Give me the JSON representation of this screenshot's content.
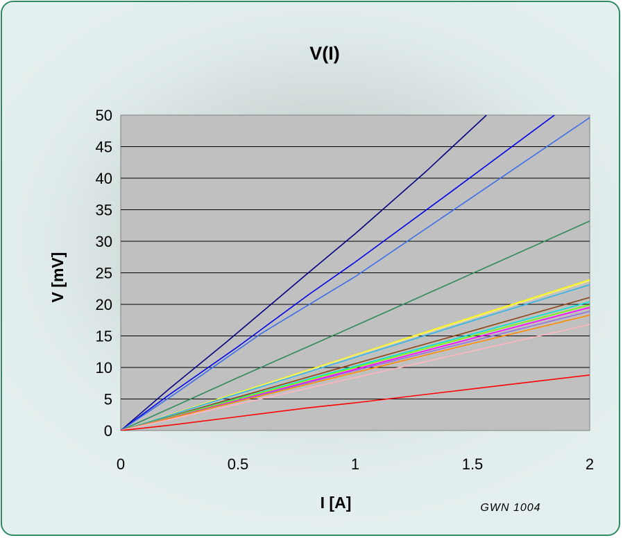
{
  "chart_data": {
    "type": "line",
    "title": "V(I)",
    "xlabel": "I [A]",
    "ylabel": "V [mV]",
    "xlim": [
      0,
      2
    ],
    "ylim": [
      0,
      50
    ],
    "xticks": [
      "0",
      "0.5",
      "1",
      "1.5",
      "2"
    ],
    "yticks": [
      "0",
      "5",
      "10",
      "15",
      "20",
      "25",
      "30",
      "35",
      "40",
      "45",
      "50"
    ],
    "grid": "horizontal",
    "plot_background": "#c0c0c0",
    "legend": "none",
    "series": [
      {
        "color": "#000080",
        "x": [
          0,
          0.2,
          0.45,
          0.8,
          1.0,
          1.3,
          1.56
        ],
        "y": [
          0,
          6.4,
          14.0,
          25.0,
          31.2,
          41.0,
          50.0
        ]
      },
      {
        "color": "#0000e6",
        "x": [
          0,
          0.2,
          0.5,
          0.8,
          1.0,
          1.4,
          1.85
        ],
        "y": [
          0,
          5.5,
          13.3,
          21.5,
          26.7,
          37.6,
          50.0
        ]
      },
      {
        "color": "#3d6de8",
        "x": [
          0,
          0.25,
          0.6,
          1.0,
          1.5,
          2.0
        ],
        "y": [
          0,
          6.3,
          15.4,
          24.4,
          37.0,
          49.6
        ]
      },
      {
        "color": "#2e8b57",
        "x": [
          0,
          0.5,
          1.0,
          1.5,
          2.0
        ],
        "y": [
          0,
          8.4,
          16.6,
          24.9,
          33.2
        ]
      },
      {
        "color": "#ffff00",
        "x": [
          0,
          0.5,
          1.0,
          1.5,
          2.0
        ],
        "y": [
          0,
          6.0,
          12.0,
          18.0,
          23.9
        ]
      },
      {
        "color": "#f0e68c",
        "x": [
          0,
          0.5,
          1.0,
          1.5,
          2.0
        ],
        "y": [
          0,
          5.9,
          11.9,
          17.8,
          23.7
        ]
      },
      {
        "color": "#33b5e5",
        "x": [
          0,
          0.5,
          1.0,
          1.5,
          2.0
        ],
        "y": [
          0,
          5.8,
          11.6,
          17.4,
          23.1
        ]
      },
      {
        "color": "#8b4513",
        "x": [
          0,
          0.5,
          1.0,
          1.5,
          2.0
        ],
        "y": [
          0,
          5.3,
          10.6,
          15.8,
          21.1
        ]
      },
      {
        "color": "#00e5d5",
        "x": [
          0,
          0.5,
          1.0,
          1.5,
          2.0
        ],
        "y": [
          0,
          5.1,
          10.2,
          15.3,
          20.4
        ]
      },
      {
        "color": "#7cfc00",
        "x": [
          0,
          0.5,
          1.0,
          1.5,
          2.0
        ],
        "y": [
          0,
          5.0,
          10.0,
          15.0,
          19.9
        ]
      },
      {
        "color": "#ff00ff",
        "x": [
          0,
          0.5,
          1.0,
          1.5,
          2.0
        ],
        "y": [
          0,
          4.8,
          9.7,
          14.6,
          19.5
        ]
      },
      {
        "color": "#9370db",
        "x": [
          0,
          0.5,
          1.0,
          1.5,
          2.0
        ],
        "y": [
          0,
          4.7,
          9.5,
          14.2,
          18.9
        ]
      },
      {
        "color": "#ff8c00",
        "x": [
          0,
          0.5,
          1.0,
          1.5,
          2.0
        ],
        "y": [
          0,
          4.6,
          9.2,
          13.8,
          18.3
        ]
      },
      {
        "color": "#ffb6c1",
        "x": [
          0,
          0.5,
          1.0,
          1.5,
          2.0
        ],
        "y": [
          0,
          4.2,
          8.4,
          12.6,
          16.8
        ]
      },
      {
        "color": "#ff0000",
        "x": [
          0,
          0.2,
          0.5,
          0.8,
          1.0,
          1.5,
          2.0
        ],
        "y": [
          0,
          0.8,
          2.2,
          3.6,
          4.4,
          6.6,
          8.8
        ]
      }
    ]
  },
  "footnote": "GWN 1004"
}
